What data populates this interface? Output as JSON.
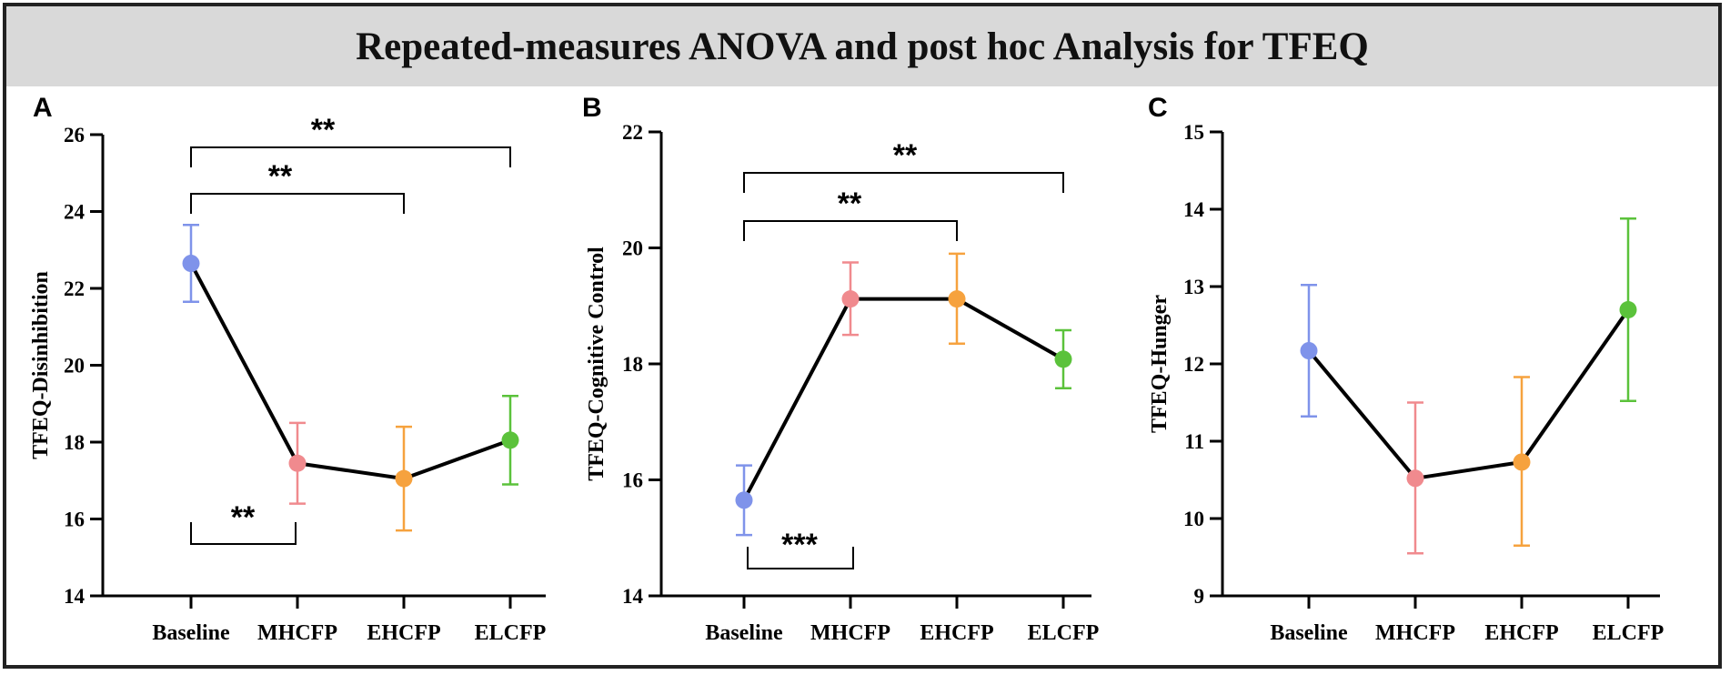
{
  "figure_title": "Repeated-measures  ANOVA and post hoc Analysis for TFEQ",
  "colors": {
    "Baseline": "#7f93ea",
    "MHCFP": "#f08a8e",
    "EHCFP": "#f6a23e",
    "ELCFP": "#5bc23b",
    "line": "#000000",
    "title_bg": "#d9d9d9"
  },
  "chart_data": [
    {
      "type": "line",
      "panel": "A",
      "ylabel": "TFEQ-Disinhibition",
      "categories": [
        "Baseline",
        "MHCFP",
        "EHCFP",
        "ELCFP"
      ],
      "values": [
        22.65,
        17.45,
        17.05,
        18.05
      ],
      "error_low": [
        21.65,
        16.4,
        15.7,
        16.9
      ],
      "error_high": [
        23.65,
        18.5,
        18.4,
        19.2
      ],
      "ylim": [
        14,
        26
      ],
      "yticks": [
        "14",
        "16",
        "18",
        "20",
        "22",
        "24",
        "26"
      ],
      "significance": [
        {
          "from": "Baseline",
          "to": "ELCFP",
          "label": "**",
          "position": "above"
        },
        {
          "from": "Baseline",
          "to": "EHCFP",
          "label": "**",
          "position": "above"
        },
        {
          "from": "Baseline",
          "to": "MHCFP",
          "label": "**",
          "position": "below"
        }
      ]
    },
    {
      "type": "line",
      "panel": "B",
      "ylabel": "TFEQ-Cognitive Control",
      "categories": [
        "Baseline",
        "MHCFP",
        "EHCFP",
        "ELCFP"
      ],
      "values": [
        15.65,
        19.12,
        19.12,
        18.08
      ],
      "error_low": [
        15.05,
        18.5,
        18.35,
        17.58
      ],
      "error_high": [
        16.25,
        19.75,
        19.9,
        18.58
      ],
      "ylim": [
        14,
        22
      ],
      "yticks": [
        "14",
        "16",
        "18",
        "20",
        "22"
      ],
      "significance": [
        {
          "from": "Baseline",
          "to": "ELCFP",
          "label": "**",
          "position": "above"
        },
        {
          "from": "Baseline",
          "to": "EHCFP",
          "label": "**",
          "position": "above"
        },
        {
          "from": "Baseline",
          "to": "MHCFP",
          "label": "***",
          "position": "below"
        }
      ]
    },
    {
      "type": "line",
      "panel": "C",
      "ylabel": "TFEQ-Hunger",
      "categories": [
        "Baseline",
        "MHCFP",
        "EHCFP",
        "ELCFP"
      ],
      "values": [
        12.17,
        10.52,
        10.73,
        12.7
      ],
      "error_low": [
        11.32,
        9.55,
        9.65,
        11.52
      ],
      "error_high": [
        13.02,
        11.5,
        11.83,
        13.88
      ],
      "ylim": [
        9,
        15
      ],
      "yticks": [
        "9",
        "10",
        "11",
        "12",
        "13",
        "14",
        "15"
      ],
      "significance": []
    }
  ]
}
